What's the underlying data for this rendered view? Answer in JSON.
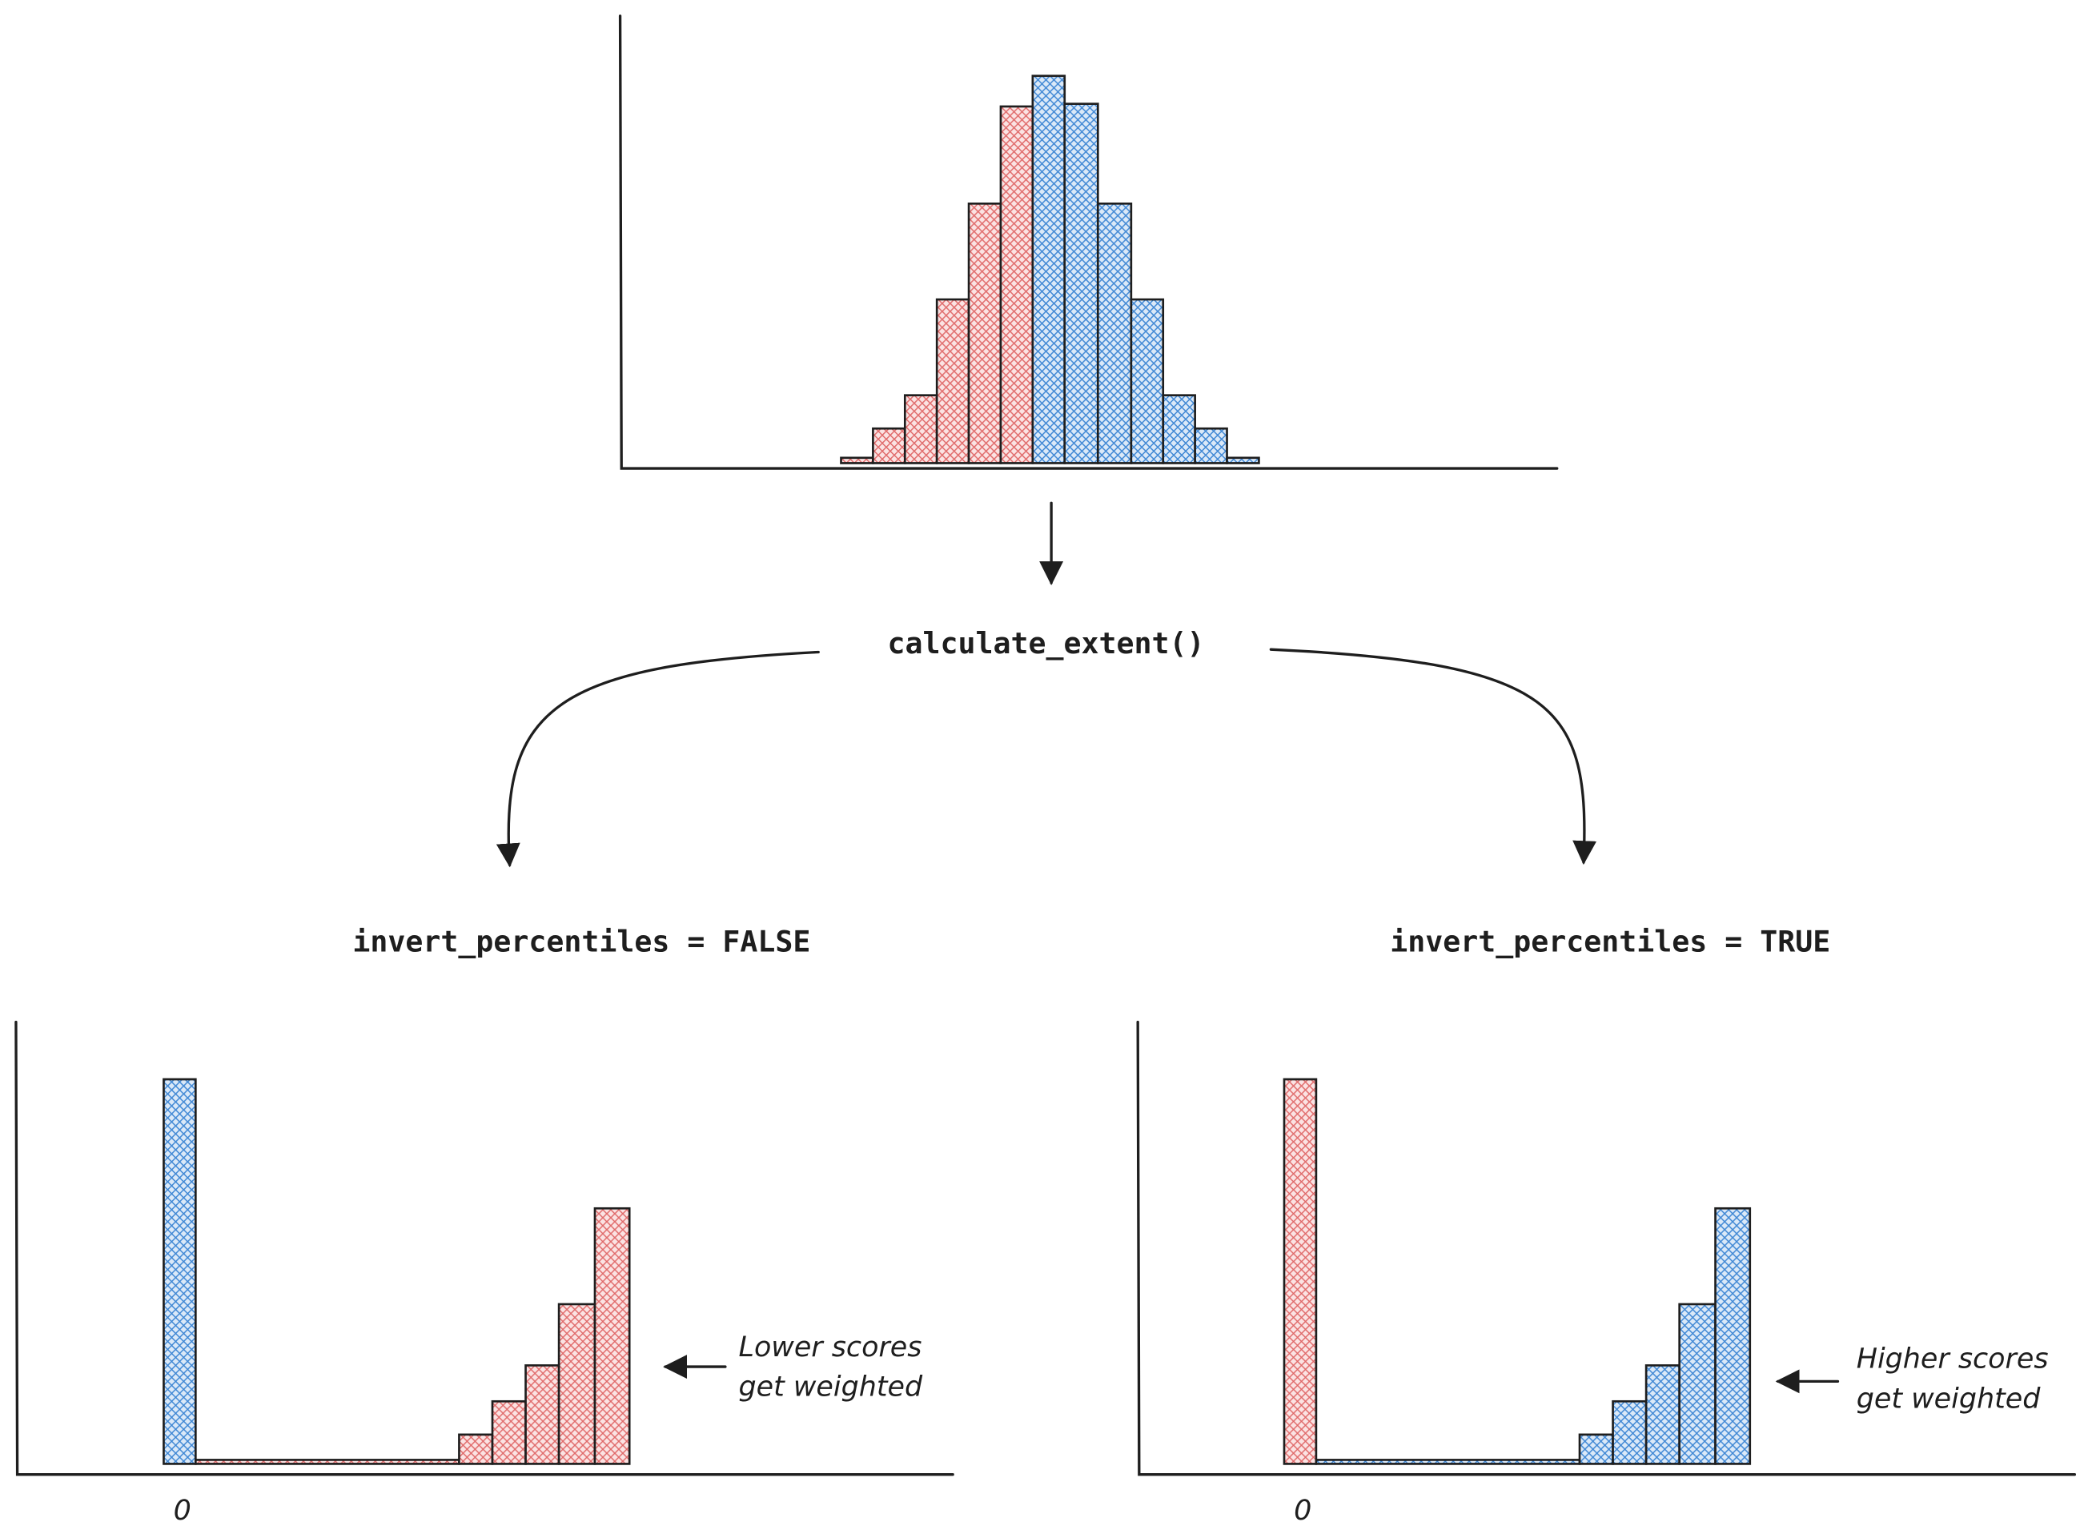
{
  "center": {
    "label": "calculate_extent()"
  },
  "left": {
    "label": "invert_percentiles = FALSE",
    "axis_label": "0",
    "note": [
      "Lower scores",
      "get weighted"
    ]
  },
  "right": {
    "label": "invert_percentiles = TRUE",
    "axis_label": "0",
    "note": [
      "Higher scores",
      "get weighted"
    ]
  }
}
